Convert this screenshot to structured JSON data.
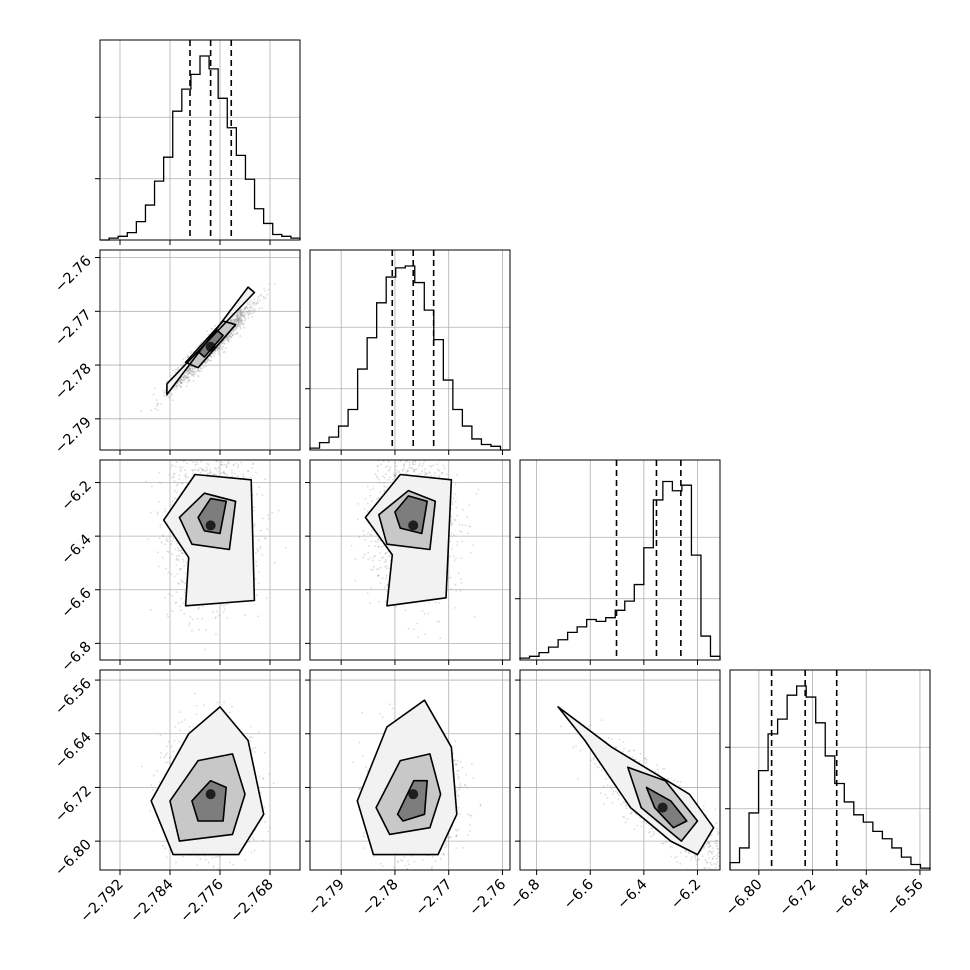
{
  "chart_data": {
    "type": "corner",
    "title": "",
    "colors": {
      "line": "#000000",
      "grid": "#b0b0b0",
      "axes": "#000000",
      "background": "#ffffff"
    },
    "grid": true,
    "parameters": [
      {
        "index": 0,
        "range": [
          -2.7952,
          -2.7632
        ],
        "ticks": [
          {
            "value": -2.792,
            "label": "−2.792"
          },
          {
            "value": -2.784,
            "label": "−2.784"
          },
          {
            "value": -2.776,
            "label": "−2.776"
          },
          {
            "value": -2.768,
            "label": "−2.768"
          }
        ],
        "quantiles": [
          -2.7808,
          -2.7775,
          -2.7742
        ],
        "histogram": {
          "ymax": 1.0,
          "yticks": [
            0.333,
            0.667
          ],
          "counts": [
            0.0,
            0.01,
            0.02,
            0.04,
            0.1,
            0.19,
            0.32,
            0.45,
            0.7,
            0.82,
            0.9,
            1.0,
            0.93,
            0.77,
            0.61,
            0.46,
            0.33,
            0.17,
            0.09,
            0.03,
            0.02,
            0.01
          ]
        }
      },
      {
        "index": 1,
        "range": [
          -2.7958,
          -2.7586
        ],
        "ticks": [
          {
            "value": -2.79,
            "label": "−2.79"
          },
          {
            "value": -2.78,
            "label": "−2.78"
          },
          {
            "value": -2.77,
            "label": "−2.77"
          },
          {
            "value": -2.76,
            "label": "−2.76"
          }
        ],
        "quantiles": [
          -2.7805,
          -2.7766,
          -2.7728
        ],
        "histogram": {
          "ymax": 1.0,
          "yticks": [
            0.333,
            0.667
          ],
          "counts": [
            0.01,
            0.04,
            0.07,
            0.13,
            0.22,
            0.44,
            0.61,
            0.8,
            0.94,
            0.99,
            1.0,
            0.91,
            0.76,
            0.6,
            0.38,
            0.22,
            0.13,
            0.06,
            0.03,
            0.02,
            0.0
          ]
        }
      },
      {
        "index": 2,
        "range": [
          -6.862,
          -6.116
        ],
        "ticks": [
          {
            "value": -6.8,
            "label": "−6.8"
          },
          {
            "value": -6.6,
            "label": "−6.6"
          },
          {
            "value": -6.4,
            "label": "−6.4"
          },
          {
            "value": -6.2,
            "label": "−6.2"
          }
        ],
        "quantiles": [
          -6.502,
          -6.353,
          -6.262
        ],
        "histogram": {
          "ymax": 1.0,
          "yticks": [
            0.333,
            0.667
          ],
          "counts": [
            0.01,
            0.02,
            0.04,
            0.07,
            0.11,
            0.15,
            0.18,
            0.22,
            0.21,
            0.23,
            0.27,
            0.32,
            0.41,
            0.61,
            0.87,
            0.97,
            0.92,
            0.95,
            0.57,
            0.13,
            0.02
          ]
        }
      },
      {
        "index": 3,
        "range": [
          -6.843,
          -6.545
        ],
        "ticks": [
          {
            "value": -6.8,
            "label": "−6.80"
          },
          {
            "value": -6.72,
            "label": "−6.72"
          },
          {
            "value": -6.64,
            "label": "−6.64"
          },
          {
            "value": -6.56,
            "label": "−6.56"
          }
        ],
        "quantiles": [
          -6.781,
          -6.731,
          -6.684
        ],
        "histogram": {
          "ymax": 1.0,
          "yticks": [
            0.333,
            0.667
          ],
          "counts": [
            0.04,
            0.12,
            0.31,
            0.54,
            0.74,
            0.82,
            0.95,
            1.0,
            0.94,
            0.8,
            0.62,
            0.47,
            0.37,
            0.3,
            0.26,
            0.21,
            0.17,
            0.12,
            0.07,
            0.03,
            0.01
          ]
        }
      }
    ],
    "pairs": [
      {
        "x": 0,
        "y": 1,
        "mean": [
          -2.7775,
          -2.7766
        ],
        "sd": [
          0.0032,
          0.0038
        ],
        "corr": 0.96,
        "contours": [
          [
            [
              -2.7845,
              -2.7855
            ],
            [
              -2.7715,
              -2.7655
            ],
            [
              -2.7705,
              -2.7665
            ],
            [
              -2.7845,
              -2.7835
            ]
          ],
          [
            [
              -2.7815,
              -2.7795
            ],
            [
              -2.7755,
              -2.7718
            ],
            [
              -2.7735,
              -2.7725
            ],
            [
              -2.7795,
              -2.7805
            ]
          ],
          [
            [
              -2.7795,
              -2.7775
            ],
            [
              -2.7765,
              -2.7735
            ],
            [
              -2.7755,
              -2.7745
            ],
            [
              -2.7785,
              -2.7785
            ]
          ]
        ]
      },
      {
        "x": 0,
        "y": 2,
        "mean": [
          -2.7775,
          -6.36
        ],
        "sd": [
          0.0034,
          0.14
        ],
        "corr": 0.0,
        "contours": [
          [
            [
              -2.785,
              -6.34
            ],
            [
              -2.78,
              -6.17
            ],
            [
              -2.771,
              -6.19
            ],
            [
              -2.7705,
              -6.64
            ],
            [
              -2.7815,
              -6.66
            ],
            [
              -2.781,
              -6.48
            ]
          ],
          [
            [
              -2.7825,
              -6.33
            ],
            [
              -2.7785,
              -6.24
            ],
            [
              -2.7735,
              -6.27
            ],
            [
              -2.7745,
              -6.45
            ],
            [
              -2.7805,
              -6.43
            ]
          ],
          [
            [
              -2.7795,
              -6.33
            ],
            [
              -2.7775,
              -6.26
            ],
            [
              -2.775,
              -6.27
            ],
            [
              -2.776,
              -6.39
            ],
            [
              -2.7785,
              -6.38
            ]
          ]
        ]
      },
      {
        "x": 1,
        "y": 2,
        "mean": [
          -2.7766,
          -6.36
        ],
        "sd": [
          0.0038,
          0.14
        ],
        "corr": 0.0,
        "contours": [
          [
            [
              -2.7855,
              -6.33
            ],
            [
              -2.779,
              -6.17
            ],
            [
              -2.7695,
              -6.19
            ],
            [
              -2.7705,
              -6.63
            ],
            [
              -2.7815,
              -6.66
            ],
            [
              -2.7805,
              -6.47
            ]
          ],
          [
            [
              -2.783,
              -6.32
            ],
            [
              -2.7775,
              -6.23
            ],
            [
              -2.7725,
              -6.27
            ],
            [
              -2.7735,
              -6.45
            ],
            [
              -2.7815,
              -6.43
            ]
          ],
          [
            [
              -2.78,
              -6.31
            ],
            [
              -2.7775,
              -6.25
            ],
            [
              -2.774,
              -6.27
            ],
            [
              -2.775,
              -6.39
            ],
            [
              -2.779,
              -6.37
            ]
          ]
        ]
      },
      {
        "x": 0,
        "y": 3,
        "mean": [
          -2.7775,
          -6.73
        ],
        "sd": [
          0.0034,
          0.045
        ],
        "corr": 0.0,
        "contours": [
          [
            [
              -2.787,
              -6.74
            ],
            [
              -2.781,
              -6.64
            ],
            [
              -2.776,
              -6.6
            ],
            [
              -2.7715,
              -6.65
            ],
            [
              -2.769,
              -6.76
            ],
            [
              -2.773,
              -6.82
            ],
            [
              -2.7835,
              -6.82
            ]
          ],
          [
            [
              -2.784,
              -6.74
            ],
            [
              -2.7795,
              -6.68
            ],
            [
              -2.774,
              -6.67
            ],
            [
              -2.772,
              -6.73
            ],
            [
              -2.774,
              -6.79
            ],
            [
              -2.7825,
              -6.8
            ]
          ],
          [
            [
              -2.7805,
              -6.74
            ],
            [
              -2.7775,
              -6.71
            ],
            [
              -2.775,
              -6.72
            ],
            [
              -2.7755,
              -6.77
            ],
            [
              -2.7795,
              -6.77
            ]
          ]
        ]
      },
      {
        "x": 1,
        "y": 3,
        "mean": [
          -2.7766,
          -6.73
        ],
        "sd": [
          0.0038,
          0.045
        ],
        "corr": 0.0,
        "contours": [
          [
            [
              -2.787,
              -6.74
            ],
            [
              -2.7815,
              -6.63
            ],
            [
              -2.7745,
              -6.59
            ],
            [
              -2.7695,
              -6.66
            ],
            [
              -2.7685,
              -6.76
            ],
            [
              -2.772,
              -6.82
            ],
            [
              -2.784,
              -6.82
            ]
          ],
          [
            [
              -2.7835,
              -6.75
            ],
            [
              -2.779,
              -6.68
            ],
            [
              -2.7735,
              -6.67
            ],
            [
              -2.7715,
              -6.73
            ],
            [
              -2.7735,
              -6.78
            ],
            [
              -2.781,
              -6.79
            ]
          ],
          [
            [
              -2.7795,
              -6.76
            ],
            [
              -2.7765,
              -6.71
            ],
            [
              -2.774,
              -6.71
            ],
            [
              -2.7745,
              -6.76
            ],
            [
              -2.7785,
              -6.77
            ]
          ]
        ]
      },
      {
        "x": 2,
        "y": 3,
        "mean": [
          -6.33,
          -6.75
        ],
        "sd": [
          0.11,
          0.04
        ],
        "corr": -0.85,
        "contours": [
          [
            [
              -6.72,
              -6.6
            ],
            [
              -6.52,
              -6.66
            ],
            [
              -6.23,
              -6.73
            ],
            [
              -6.14,
              -6.78
            ],
            [
              -6.2,
              -6.82
            ],
            [
              -6.3,
              -6.8
            ],
            [
              -6.45,
              -6.75
            ],
            [
              -6.62,
              -6.65
            ]
          ],
          [
            [
              -6.46,
              -6.69
            ],
            [
              -6.32,
              -6.71
            ],
            [
              -6.2,
              -6.77
            ],
            [
              -6.26,
              -6.8
            ],
            [
              -6.41,
              -6.75
            ]
          ],
          [
            [
              -6.39,
              -6.72
            ],
            [
              -6.3,
              -6.74
            ],
            [
              -6.24,
              -6.77
            ],
            [
              -6.29,
              -6.78
            ],
            [
              -6.36,
              -6.75
            ]
          ]
        ]
      }
    ]
  }
}
